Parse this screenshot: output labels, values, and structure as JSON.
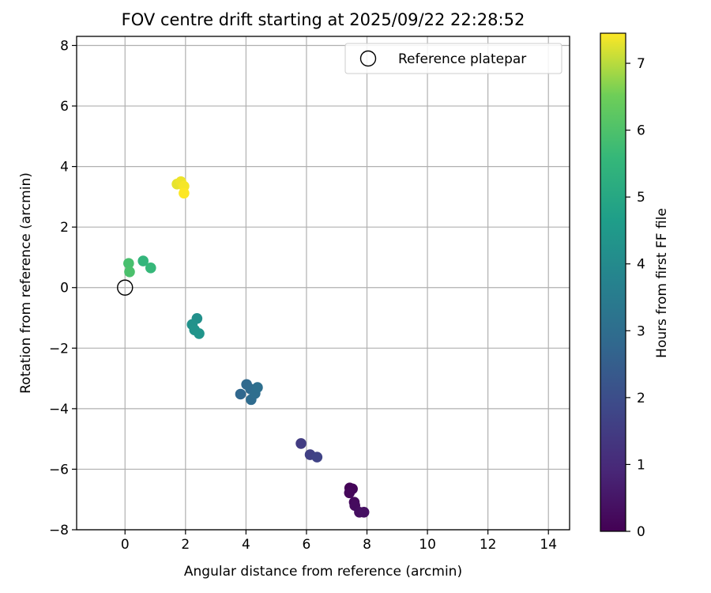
{
  "chart_data": {
    "type": "scatter",
    "title": "FOV centre drift starting at 2025/09/22 22:28:52",
    "xlabel": "Angular distance from reference (arcmin)",
    "ylabel": "Rotation from reference (arcmin)",
    "xlim": [
      -1.6,
      14.7
    ],
    "ylim": [
      -8.0,
      8.3
    ],
    "xticks": [
      0,
      2,
      4,
      6,
      8,
      10,
      12,
      14
    ],
    "yticks": [
      -8,
      -6,
      -4,
      -2,
      0,
      2,
      4,
      6,
      8
    ],
    "grid": true,
    "legend": {
      "placement": "top-right",
      "entries": [
        "Reference platepar"
      ]
    },
    "reference_point": {
      "name": "Reference platepar",
      "x": 0,
      "y": 0
    },
    "colorbar": {
      "label": "Hours from first FF file",
      "range": [
        0,
        7.45
      ],
      "ticks": [
        0,
        1,
        2,
        3,
        4,
        5,
        6,
        7
      ],
      "colormap": "viridis"
    },
    "points": [
      {
        "x": 7.43,
        "y": -6.62,
        "t": 0.05
      },
      {
        "x": 7.52,
        "y": -6.65,
        "t": 0.1
      },
      {
        "x": 7.42,
        "y": -6.78,
        "t": 0.15
      },
      {
        "x": 7.58,
        "y": -7.09,
        "t": 0.2
      },
      {
        "x": 7.6,
        "y": -7.2,
        "t": 0.25
      },
      {
        "x": 7.75,
        "y": -7.42,
        "t": 0.3
      },
      {
        "x": 7.9,
        "y": -7.42,
        "t": 0.35
      },
      {
        "x": 5.82,
        "y": -5.15,
        "t": 1.5
      },
      {
        "x": 6.12,
        "y": -5.52,
        "t": 1.6
      },
      {
        "x": 6.35,
        "y": -5.6,
        "t": 1.7
      },
      {
        "x": 3.82,
        "y": -3.52,
        "t": 2.8
      },
      {
        "x": 4.02,
        "y": -3.2,
        "t": 2.85
      },
      {
        "x": 4.15,
        "y": -3.35,
        "t": 2.9
      },
      {
        "x": 4.17,
        "y": -3.7,
        "t": 2.95
      },
      {
        "x": 4.3,
        "y": -3.5,
        "t": 3.0
      },
      {
        "x": 4.38,
        "y": -3.3,
        "t": 3.05
      },
      {
        "x": 2.38,
        "y": -1.02,
        "t": 4.2
      },
      {
        "x": 2.22,
        "y": -1.22,
        "t": 4.25
      },
      {
        "x": 2.3,
        "y": -1.4,
        "t": 4.3
      },
      {
        "x": 2.45,
        "y": -1.52,
        "t": 4.35
      },
      {
        "x": 0.6,
        "y": 0.88,
        "t": 5.5
      },
      {
        "x": 0.85,
        "y": 0.65,
        "t": 5.6
      },
      {
        "x": 0.12,
        "y": 0.8,
        "t": 5.9
      },
      {
        "x": 0.15,
        "y": 0.52,
        "t": 5.95
      },
      {
        "x": 1.72,
        "y": 3.42,
        "t": 7.3
      },
      {
        "x": 1.85,
        "y": 3.5,
        "t": 7.35
      },
      {
        "x": 1.95,
        "y": 3.35,
        "t": 7.4
      },
      {
        "x": 1.95,
        "y": 3.12,
        "t": 7.45
      }
    ]
  }
}
